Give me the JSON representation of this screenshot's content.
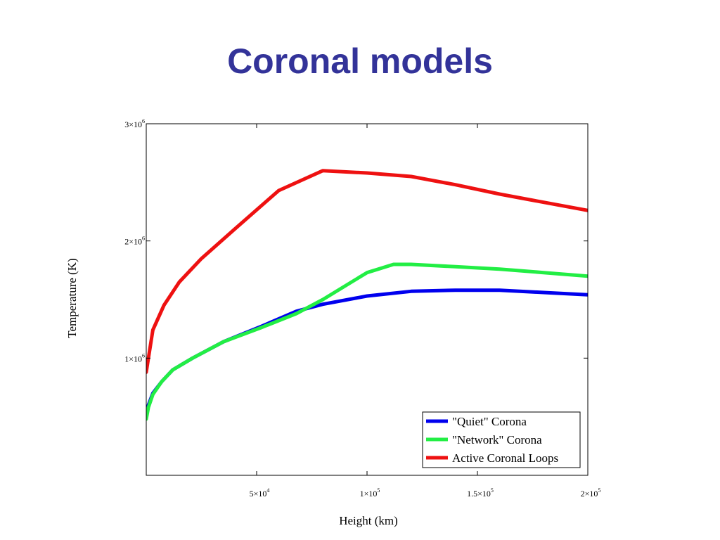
{
  "slide": {
    "title": "Coronal models",
    "title_color": "#333399"
  },
  "chart_data": {
    "type": "line",
    "title": "",
    "xlabel": "Height (km)",
    "ylabel": "Temperature (K)",
    "xlim": [
      0,
      200000
    ],
    "ylim": [
      0,
      3000000
    ],
    "grid": false,
    "legend_position": "bottom-right",
    "x_ticks": [
      {
        "value": 50000,
        "mantissa": "5",
        "exp": "4"
      },
      {
        "value": 100000,
        "mantissa": "1",
        "exp": "5"
      },
      {
        "value": 150000,
        "mantissa": "1.5",
        "exp": "5"
      },
      {
        "value": 200000,
        "mantissa": "2",
        "exp": "5"
      }
    ],
    "y_ticks": [
      {
        "value": 1000000,
        "mantissa": "1",
        "exp": "6"
      },
      {
        "value": 2000000,
        "mantissa": "2",
        "exp": "6"
      },
      {
        "value": 3000000,
        "mantissa": "3",
        "exp": "6"
      }
    ],
    "series": [
      {
        "name": "\"Quiet\" Corona",
        "color": "#0000ee",
        "x": [
          0,
          1000,
          3000,
          7000,
          12000,
          21000,
          35000,
          52000,
          68000,
          80000,
          100000,
          120000,
          140000,
          160000,
          180000,
          200000
        ],
        "y": [
          500000,
          600000,
          700000,
          800000,
          900000,
          1000000,
          1140000,
          1270000,
          1400000,
          1460000,
          1530000,
          1570000,
          1580000,
          1580000,
          1560000,
          1540000
        ]
      },
      {
        "name": "\"Network\" Corona",
        "color": "#22ee44",
        "x": [
          0,
          1000,
          3000,
          7000,
          12000,
          21000,
          35000,
          52000,
          68000,
          80000,
          100000,
          112000,
          120000,
          140000,
          160000,
          180000,
          200000
        ],
        "y": [
          480000,
          580000,
          690000,
          800000,
          900000,
          1000000,
          1140000,
          1260000,
          1380000,
          1500000,
          1730000,
          1800000,
          1800000,
          1780000,
          1760000,
          1730000,
          1700000
        ]
      },
      {
        "name": "Active Coronal Loops",
        "color": "#ee1111",
        "x": [
          0,
          1000,
          3000,
          8000,
          15000,
          25000,
          40000,
          60000,
          80000,
          100000,
          120000,
          140000,
          160000,
          180000,
          200000
        ],
        "y": [
          880000,
          1000000,
          1240000,
          1450000,
          1650000,
          1850000,
          2100000,
          2430000,
          2600000,
          2580000,
          2550000,
          2480000,
          2400000,
          2330000,
          2260000
        ]
      }
    ]
  }
}
